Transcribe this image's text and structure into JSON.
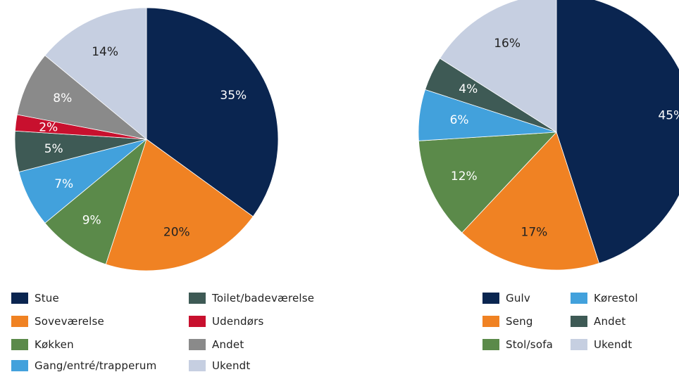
{
  "chart_data": [
    {
      "type": "pie",
      "title": "",
      "slices": [
        {
          "label": "Stue",
          "value": 35,
          "display": "35%",
          "color": "#0a2550"
        },
        {
          "label": "Soveværelse",
          "value": 20,
          "display": "20%",
          "color": "#f08223"
        },
        {
          "label": "Køkken",
          "value": 9,
          "display": "9%",
          "color": "#5b8a4a"
        },
        {
          "label": "Gang/entré/trapperum",
          "value": 7,
          "display": "7%",
          "color": "#42a1dc"
        },
        {
          "label": "Toilet/badeværelse",
          "value": 5,
          "display": "5%",
          "color": "#3e5a55"
        },
        {
          "label": "Udendørs",
          "value": 2,
          "display": "2%",
          "color": "#c8102e"
        },
        {
          "label": "Andet",
          "value": 8,
          "display": "8%",
          "color": "#8a8a8a"
        },
        {
          "label": "Ukendt",
          "value": 14,
          "display": "14%",
          "color": "#c6cfe1"
        }
      ],
      "legend_placement": "bottom"
    },
    {
      "type": "pie",
      "title": "",
      "slices": [
        {
          "label": "Gulv",
          "value": 45,
          "display": "45%",
          "color": "#0a2550"
        },
        {
          "label": "Seng",
          "value": 17,
          "display": "17%",
          "color": "#f08223"
        },
        {
          "label": "Stol/sofa",
          "value": 12,
          "display": "12%",
          "color": "#5b8a4a"
        },
        {
          "label": "Kørestol",
          "value": 6,
          "display": "6%",
          "color": "#42a1dc"
        },
        {
          "label": "Andet",
          "value": 4,
          "display": "4%",
          "color": "#3e5a55"
        },
        {
          "label": "Ukendt",
          "value": 16,
          "display": "16%",
          "color": "#c6cfe1"
        }
      ],
      "legend_placement": "bottom"
    }
  ]
}
